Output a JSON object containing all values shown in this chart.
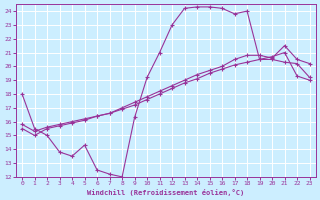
{
  "xlabel": "Windchill (Refroidissement éolien,°C)",
  "bg_color": "#cceeff",
  "grid_color": "#ffffff",
  "line_color": "#993399",
  "xlim": [
    -0.5,
    23.5
  ],
  "ylim": [
    12,
    24.5
  ],
  "xticks": [
    0,
    1,
    2,
    3,
    4,
    5,
    6,
    7,
    8,
    9,
    10,
    11,
    12,
    13,
    14,
    15,
    16,
    17,
    18,
    19,
    20,
    21,
    22,
    23
  ],
  "yticks": [
    12,
    13,
    14,
    15,
    16,
    17,
    18,
    19,
    20,
    21,
    22,
    23,
    24
  ],
  "line1_x": [
    0,
    1,
    2,
    3,
    4,
    5,
    6,
    7,
    8,
    9,
    10,
    11,
    12,
    13,
    14,
    15,
    16,
    17,
    18,
    19,
    20,
    21,
    22,
    23
  ],
  "line1_y": [
    18,
    15.5,
    15,
    13.8,
    13.5,
    14.3,
    12.5,
    12.2,
    12.0,
    16.3,
    19.2,
    21.0,
    23.0,
    24.2,
    24.3,
    24.3,
    24.2,
    23.8,
    24.0,
    20.5,
    20.5,
    20.3,
    20.2,
    19.2
  ],
  "line2_x": [
    0,
    1,
    2,
    3,
    4,
    5,
    6,
    7,
    8,
    9,
    10,
    11,
    12,
    13,
    14,
    15,
    16,
    17,
    18,
    19,
    20,
    21,
    22,
    23
  ],
  "line2_y": [
    15.5,
    15.0,
    15.5,
    15.7,
    15.9,
    16.1,
    16.4,
    16.6,
    17.0,
    17.4,
    17.8,
    18.2,
    18.6,
    19.0,
    19.4,
    19.7,
    20.0,
    20.5,
    20.8,
    20.8,
    20.6,
    21.5,
    20.5,
    20.2
  ],
  "line3_x": [
    0,
    1,
    2,
    3,
    4,
    5,
    6,
    7,
    8,
    9,
    10,
    11,
    12,
    13,
    14,
    15,
    16,
    17,
    18,
    19,
    20,
    21,
    22,
    23
  ],
  "line3_y": [
    15.8,
    15.3,
    15.6,
    15.8,
    16.0,
    16.2,
    16.4,
    16.6,
    16.9,
    17.2,
    17.6,
    18.0,
    18.4,
    18.8,
    19.1,
    19.5,
    19.8,
    20.1,
    20.3,
    20.5,
    20.7,
    21.0,
    19.3,
    19.0
  ]
}
